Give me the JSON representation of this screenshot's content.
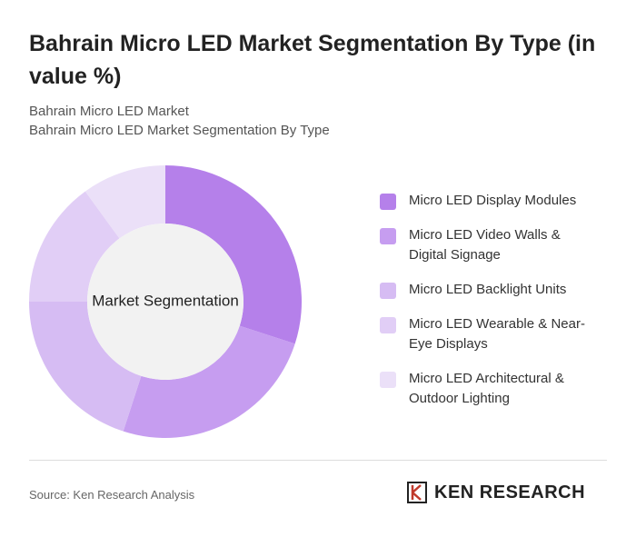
{
  "chart_data": {
    "type": "donut",
    "title": "Bahrain Micro LED Market Segmentation By Type (in value %)",
    "subtitle": [
      "Bahrain Micro LED Market",
      "Bahrain Micro LED Market Segmentation By Type"
    ],
    "center_label": "Market Segmentation",
    "categories": [
      "Micro LED Display Modules",
      "Micro LED Video Walls & Digital Signage",
      "Micro LED Backlight Units",
      "Micro LED Wearable & Near-Eye Displays",
      "Micro LED Architectural & Outdoor Lighting"
    ],
    "values": [
      30,
      25,
      20,
      15,
      10
    ],
    "colors": [
      "#b580ea",
      "#c69df0",
      "#d6bcf3",
      "#e1cef6",
      "#ebe0f8"
    ],
    "source": "Source: Ken Research Analysis",
    "brand": "KEN RESEARCH"
  }
}
